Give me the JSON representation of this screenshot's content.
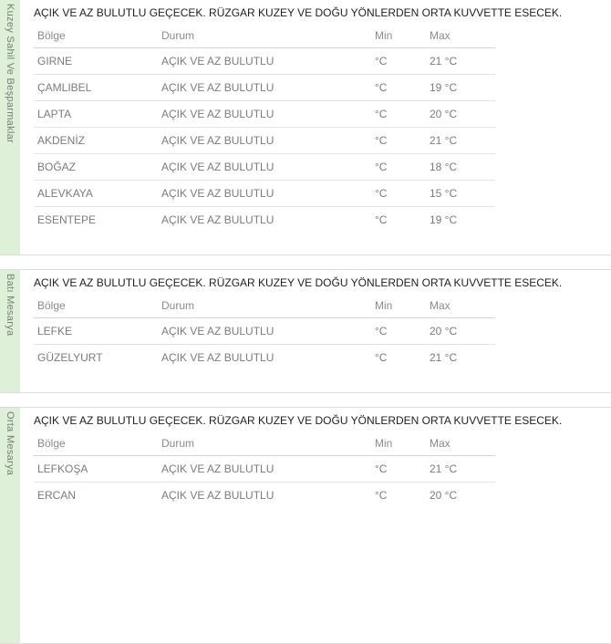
{
  "colors": {
    "sidebar_bg": "#dff0d8",
    "min_temp": "#4d78ab",
    "max_temp": "#c94c4c",
    "row_border": "#e3e3e3",
    "section_border": "#dcdcdc"
  },
  "sections": [
    {
      "group": "Kuzey Sahil Ve Beşparmaklar",
      "forecast": "AÇIK VE AZ BULUTLU GEÇECEK. RÜZGAR KUZEY VE DOĞU YÖNLERDEN ORTA KUVVETTE ESECEK.",
      "columns": {
        "bolge": "Bölge",
        "durum": "Durum",
        "min": "Min",
        "max": "Max"
      },
      "rows": [
        {
          "bolge": "GIRNE",
          "durum": "AÇIK VE AZ BULUTLU",
          "min": "°C",
          "max": "21 °C"
        },
        {
          "bolge": "ÇAMLIBEL",
          "durum": "AÇIK VE AZ BULUTLU",
          "min": "°C",
          "max": "19 °C"
        },
        {
          "bolge": "LAPTA",
          "durum": "AÇIK VE AZ BULUTLU",
          "min": "°C",
          "max": "20 °C"
        },
        {
          "bolge": "AKDENİZ",
          "durum": "AÇIK VE AZ BULUTLU",
          "min": "°C",
          "max": "21 °C"
        },
        {
          "bolge": "BOĞAZ",
          "durum": "AÇIK VE AZ BULUTLU",
          "min": "°C",
          "max": "18 °C"
        },
        {
          "bolge": "ALEVKAYA",
          "durum": "AÇIK VE AZ BULUTLU",
          "min": "°C",
          "max": "15 °C"
        },
        {
          "bolge": "ESENTEPE",
          "durum": "AÇIK VE AZ BULUTLU",
          "min": "°C",
          "max": "19 °C"
        }
      ]
    },
    {
      "group": "Batı Mesarya",
      "forecast": "AÇIK VE AZ BULUTLU GEÇECEK. RÜZGAR KUZEY VE DOĞU YÖNLERDEN ORTA KUVVETTE ESECEK.",
      "columns": {
        "bolge": "Bölge",
        "durum": "Durum",
        "min": "Min",
        "max": "Max"
      },
      "rows": [
        {
          "bolge": "LEFKE",
          "durum": "AÇIK VE AZ BULUTLU",
          "min": "°C",
          "max": "20 °C"
        },
        {
          "bolge": "GÜZELYURT",
          "durum": "AÇIK VE AZ BULUTLU",
          "min": "°C",
          "max": "21 °C"
        }
      ]
    },
    {
      "group": "Orta Mesarya",
      "forecast": "AÇIK VE AZ BULUTLU GEÇECEK. RÜZGAR KUZEY VE DOĞU YÖNLERDEN ORTA KUVVETTE ESECEK.",
      "columns": {
        "bolge": "Bölge",
        "durum": "Durum",
        "min": "Min",
        "max": "Max"
      },
      "rows": [
        {
          "bolge": "LEFKOŞA",
          "durum": "AÇIK VE AZ BULUTLU",
          "min": "°C",
          "max": "21 °C"
        },
        {
          "bolge": "ERCAN",
          "durum": "AÇIK VE AZ BULUTLU",
          "min": "°C",
          "max": "20 °C"
        }
      ]
    }
  ]
}
